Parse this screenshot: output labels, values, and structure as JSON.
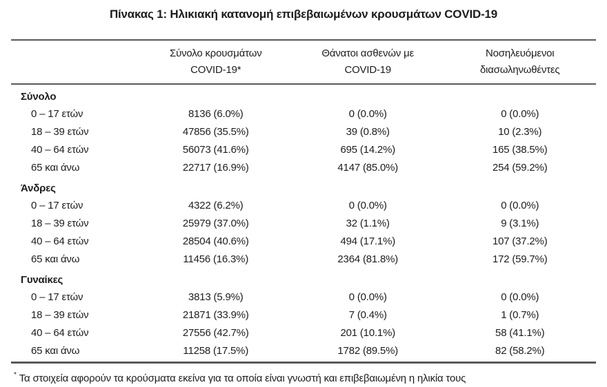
{
  "page": {
    "title": "Πίνακας 1: Ηλικιακή κατανομή επιβεβαιωμένων κρουσμάτων COVID-19"
  },
  "colors": {
    "text": "#1d1d20",
    "rule": "#58595b",
    "background": "#ffffff"
  },
  "table": {
    "header": {
      "cases": {
        "line1": "Σύνολο κρουσμάτων",
        "line2": "COVID-19*"
      },
      "deaths": {
        "line1": "Θάνατοι ασθενών με",
        "line2": "COVID-19"
      },
      "intubated": {
        "line1": "Νοσηλευόμενοι",
        "line2": "διασωληνωθέντες"
      }
    },
    "sections": [
      {
        "label": "Σύνολο",
        "rows": [
          {
            "label": "0 – 17 ετών",
            "cases": "8136 (6.0%)",
            "deaths": "0 (0.0%)",
            "intubated": "0 (0.0%)"
          },
          {
            "label": "18 – 39 ετών",
            "cases": "47856 (35.5%)",
            "deaths": "39 (0.8%)",
            "intubated": "10 (2.3%)"
          },
          {
            "label": "40 – 64 ετών",
            "cases": "56073 (41.6%)",
            "deaths": "695 (14.2%)",
            "intubated": "165 (38.5%)"
          },
          {
            "label": "65 και άνω",
            "cases": "22717 (16.9%)",
            "deaths": "4147 (85.0%)",
            "intubated": "254 (59.2%)"
          }
        ]
      },
      {
        "label": "Άνδρες",
        "rows": [
          {
            "label": "0 – 17 ετών",
            "cases": "4322 (6.2%)",
            "deaths": "0 (0.0%)",
            "intubated": "0 (0.0%)"
          },
          {
            "label": "18 – 39 ετών",
            "cases": "25979 (37.0%)",
            "deaths": "32 (1.1%)",
            "intubated": "9 (3.1%)"
          },
          {
            "label": "40 – 64 ετών",
            "cases": "28504 (40.6%)",
            "deaths": "494 (17.1%)",
            "intubated": "107 (37.2%)"
          },
          {
            "label": "65 και άνω",
            "cases": "11456 (16.3%)",
            "deaths": "2364 (81.8%)",
            "intubated": "172 (59.7%)"
          }
        ]
      },
      {
        "label": "Γυναίκες",
        "rows": [
          {
            "label": "0 – 17 ετών",
            "cases": "3813 (5.9%)",
            "deaths": "0 (0.0%)",
            "intubated": "0 (0.0%)"
          },
          {
            "label": "18 – 39 ετών",
            "cases": "21871 (33.9%)",
            "deaths": "7 (0.4%)",
            "intubated": "1 (0.7%)"
          },
          {
            "label": "40 – 64 ετών",
            "cases": "27556 (42.7%)",
            "deaths": "201 (10.1%)",
            "intubated": "58 (41.1%)"
          },
          {
            "label": "65 και άνω",
            "cases": "11258 (17.5%)",
            "deaths": "1782 (89.5%)",
            "intubated": "82 (58.2%)"
          }
        ]
      }
    ]
  },
  "footnote": {
    "marker": "*",
    "text": "Τα στοιχεία αφορούν τα κρούσματα εκείνα για τα οποία είναι γνωστή και επιβεβαιωμένη η ηλικία τους"
  }
}
